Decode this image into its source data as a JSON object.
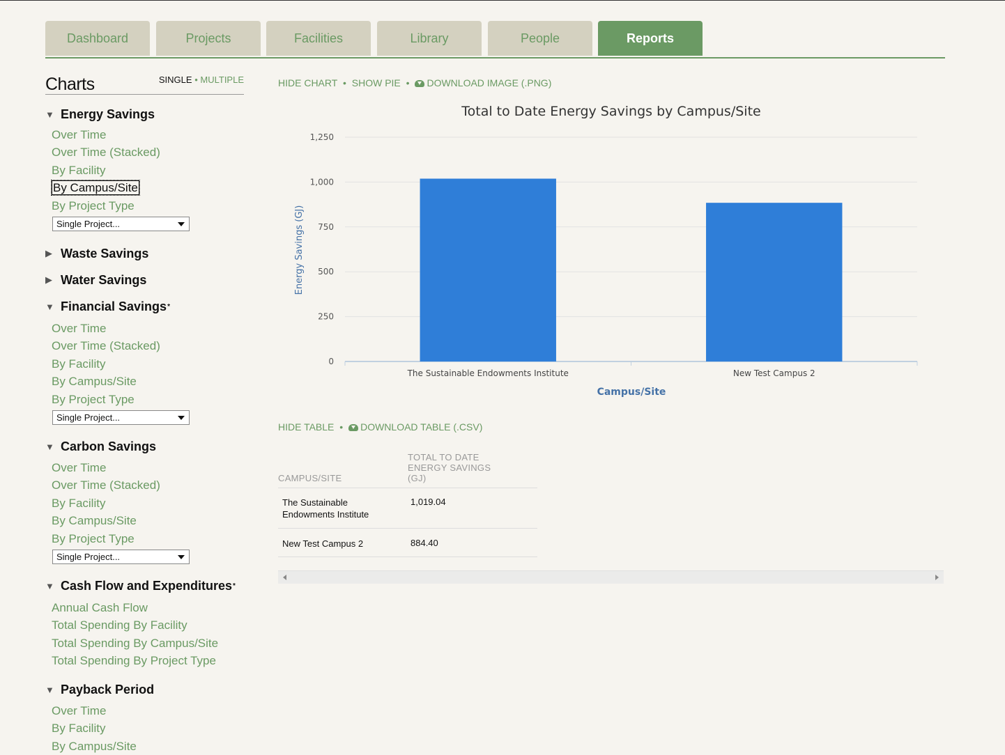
{
  "tabs": [
    {
      "label": "Dashboard",
      "active": false
    },
    {
      "label": "Projects",
      "active": false
    },
    {
      "label": "Facilities",
      "active": false
    },
    {
      "label": "Library",
      "active": false
    },
    {
      "label": "People",
      "active": false
    },
    {
      "label": "Reports",
      "active": true
    }
  ],
  "sidebar": {
    "title": "Charts",
    "mode_single": "SINGLE",
    "mode_sep": "•",
    "mode_multiple": "MULTIPLE",
    "sections": [
      {
        "title": "Energy Savings",
        "expanded": true,
        "asterisk": false,
        "links": [
          "Over Time",
          "Over Time (Stacked)",
          "By Facility",
          "By Campus/Site",
          "By Project Type"
        ],
        "selected_index": 3,
        "select": "Single Project..."
      },
      {
        "title": "Waste Savings",
        "expanded": false,
        "asterisk": false
      },
      {
        "title": "Water Savings",
        "expanded": false,
        "asterisk": false
      },
      {
        "title": "Financial Savings",
        "expanded": true,
        "asterisk": true,
        "links": [
          "Over Time",
          "Over Time (Stacked)",
          "By Facility",
          "By Campus/Site",
          "By Project Type"
        ],
        "select": "Single Project..."
      },
      {
        "title": "Carbon Savings",
        "expanded": true,
        "asterisk": false,
        "links": [
          "Over Time",
          "Over Time (Stacked)",
          "By Facility",
          "By Campus/Site",
          "By Project Type"
        ],
        "select": "Single Project..."
      },
      {
        "title": "Cash Flow and Expenditures",
        "expanded": true,
        "asterisk": true,
        "links": [
          "Annual Cash Flow",
          "Total Spending By Facility",
          "Total Spending By Campus/Site",
          "Total Spending By Project Type"
        ]
      },
      {
        "title": "Payback Period",
        "expanded": true,
        "asterisk": false,
        "links": [
          "Over Time",
          "By Facility",
          "By Campus/Site"
        ]
      }
    ]
  },
  "chart_actions": {
    "hide_chart": "HIDE CHART",
    "show_pie": "SHOW PIE",
    "download_image": "DOWNLOAD IMAGE (.PNG)",
    "sep": "•",
    "cloud_icon": "cloud-download-icon"
  },
  "chart_data": {
    "type": "bar",
    "title": "Total to Date Energy Savings by Campus/Site",
    "xlabel": "Campus/Site",
    "ylabel": "Energy Savings (GJ)",
    "categories": [
      "The Sustainable Endowments Institute",
      "New Test Campus 2"
    ],
    "values": [
      1019.04,
      884.4
    ],
    "ylim": [
      0,
      1250
    ],
    "yticks": [
      0,
      250,
      500,
      750,
      1000,
      1250
    ],
    "ytick_labels": [
      "0",
      "250",
      "500",
      "750",
      "1,000",
      "1,250"
    ],
    "grid": true,
    "bar_color": "#2f7ed8"
  },
  "table_actions": {
    "hide_table": "HIDE TABLE",
    "download_table": "DOWNLOAD TABLE (.CSV)",
    "sep": "•"
  },
  "table": {
    "headers": [
      "CAMPUS/SITE",
      "TOTAL TO DATE ENERGY SAVINGS (GJ)"
    ],
    "rows": [
      [
        "The Sustainable Endowments Institute",
        "1,019.04"
      ],
      [
        "New Test Campus 2",
        "884.40"
      ]
    ]
  },
  "colors": {
    "accent": "#6b9a64",
    "link": "#6a9a63",
    "tab_bg": "#d4d1c0",
    "background": "#f6f4ef"
  }
}
